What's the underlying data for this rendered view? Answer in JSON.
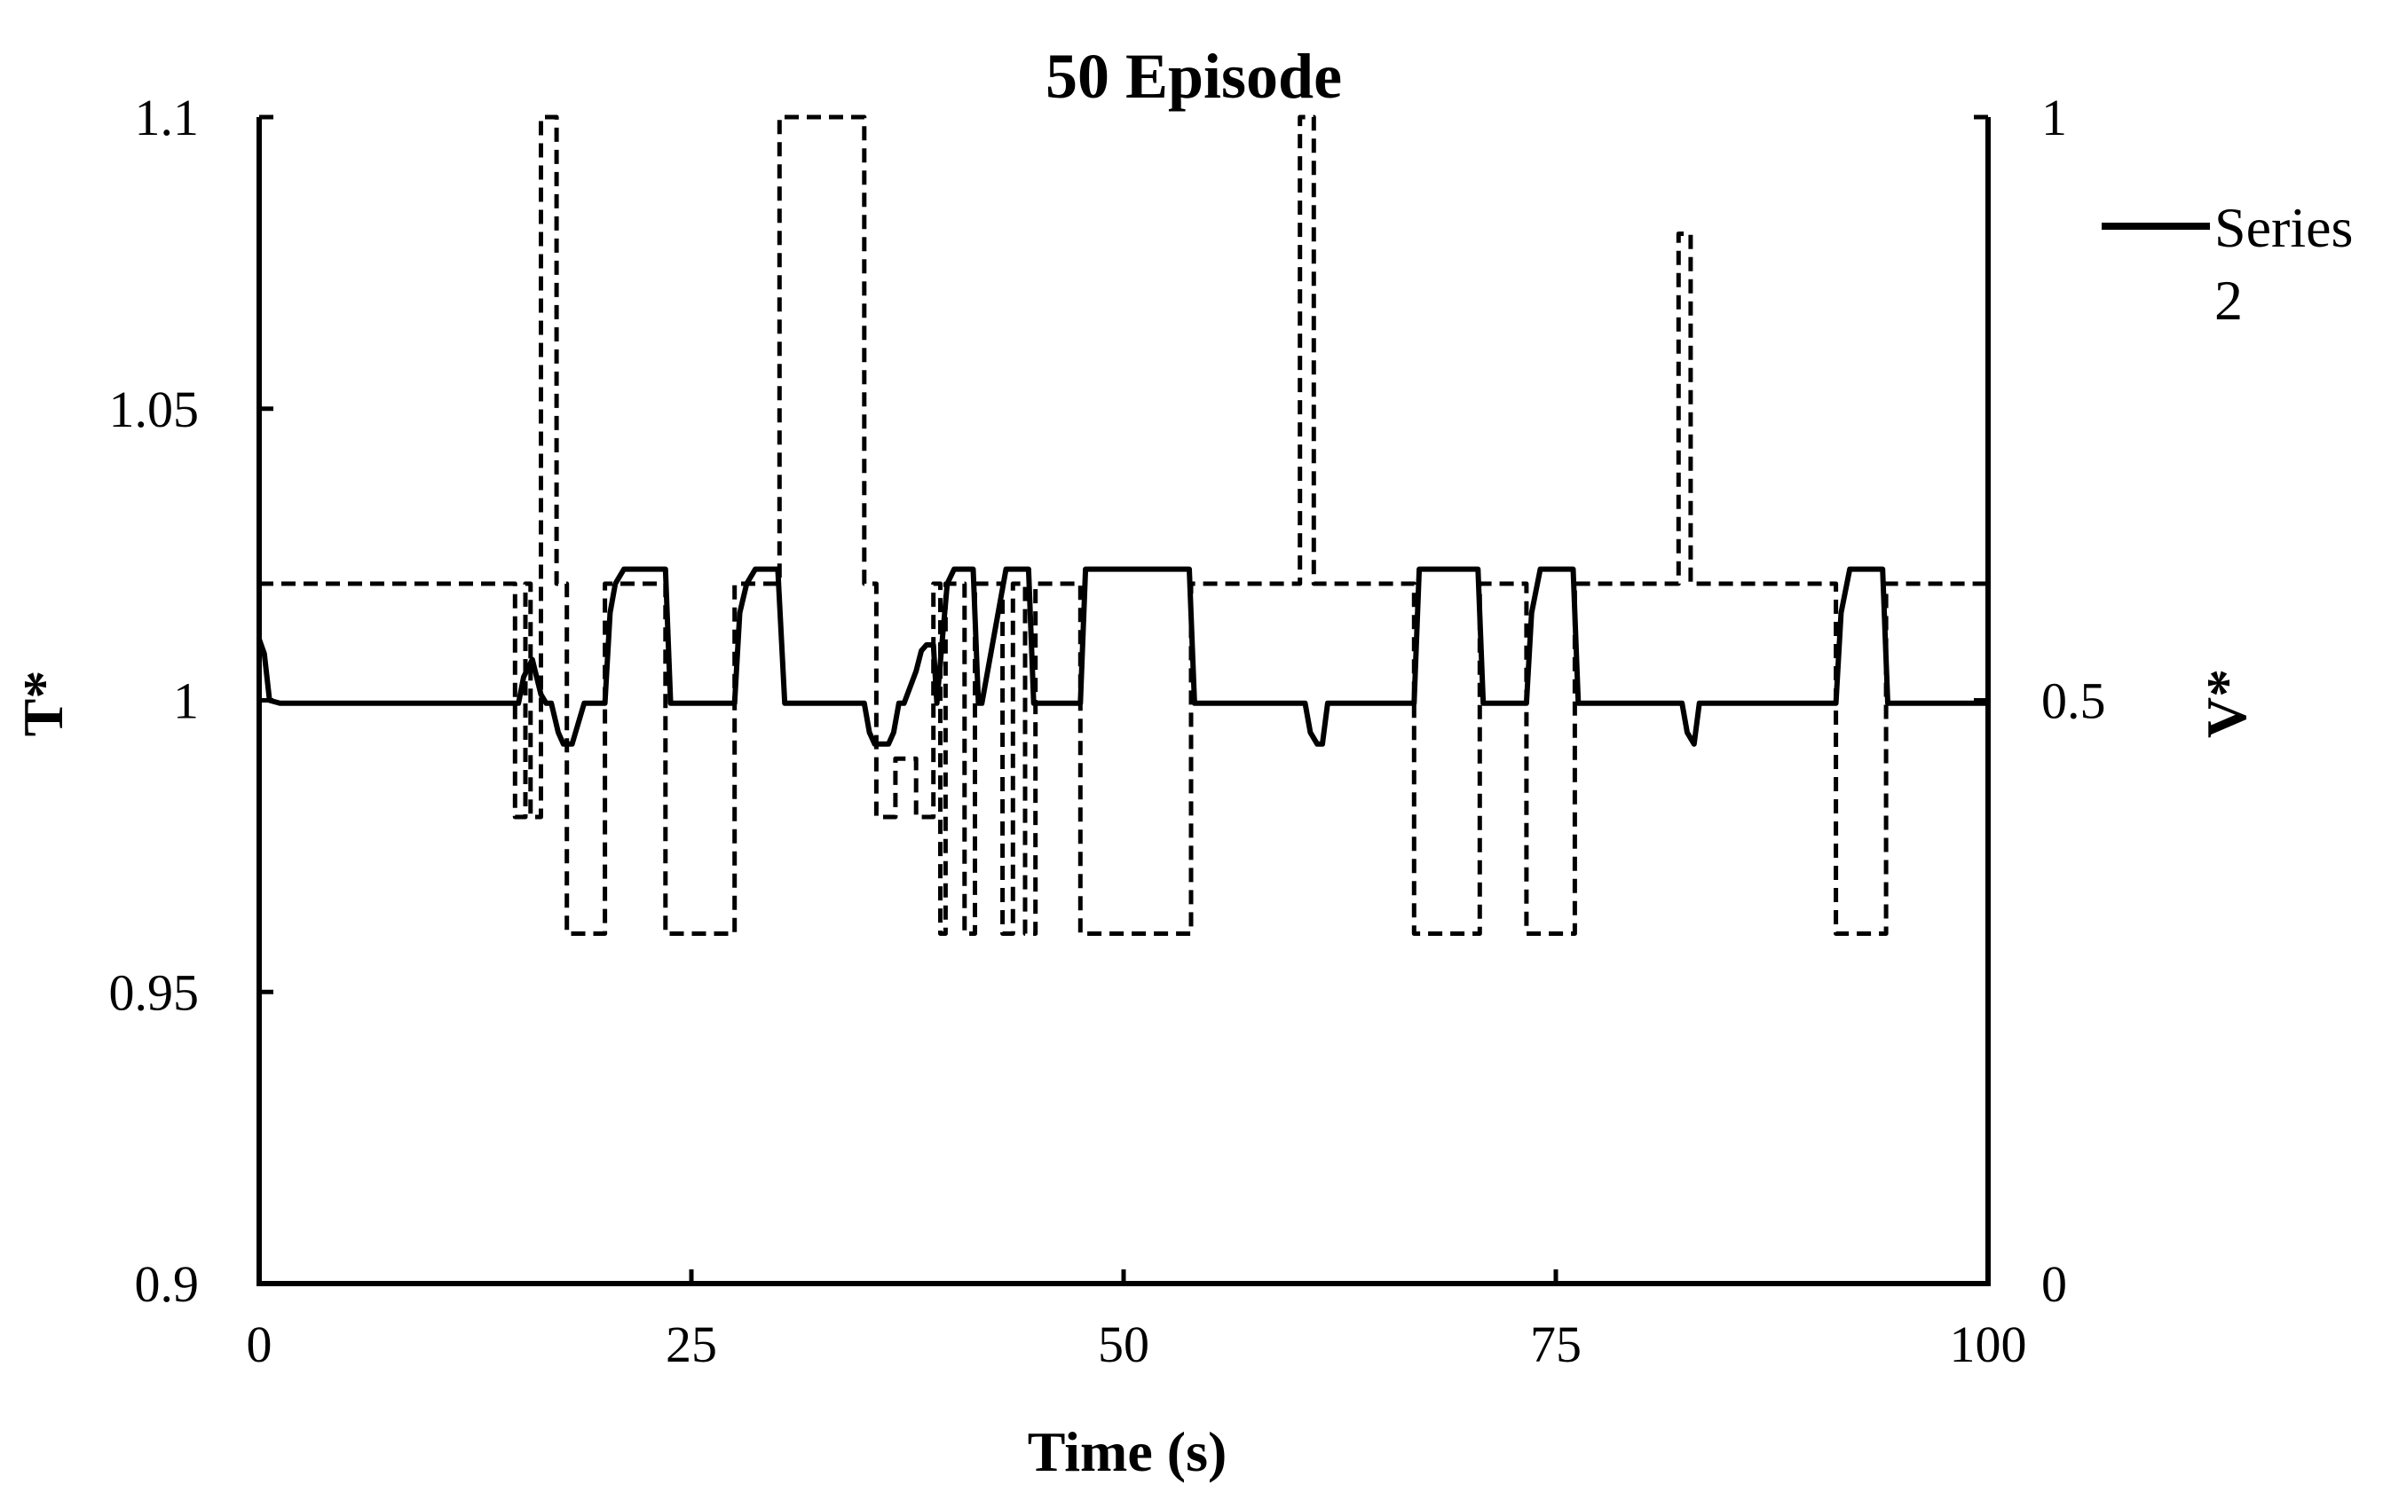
{
  "chart_data": {
    "type": "line",
    "title": "50 Episode",
    "xlabel": "Time (s)",
    "ylabel_left": "T*",
    "ylabel_right": "V*",
    "xlim": [
      0,
      100
    ],
    "ylim_left": [
      0.9,
      1.1
    ],
    "ylim_right": [
      0,
      1
    ],
    "xticks": [
      "0",
      "25",
      "50",
      "75",
      "100"
    ],
    "yticks_left": [
      "0.9",
      "0.95",
      "1",
      "1.05",
      "1.1"
    ],
    "yticks_right": [
      "0",
      "0.5",
      "1"
    ],
    "grid": false,
    "legend_position": "top-right",
    "series": [
      {
        "name": "Series 2",
        "axis": "left",
        "style": "solid",
        "color": "#000000",
        "x": [
          0,
          0.3,
          0.6,
          1.2,
          15.0,
          15.3,
          15.8,
          16.3,
          16.6,
          16.9,
          17.3,
          17.6,
          18.1,
          18.8,
          19.3,
          20.0,
          20.3,
          20.6,
          21.1,
          23.5,
          23.8,
          27.5,
          27.8,
          28.2,
          28.7,
          30.0,
          30.4,
          35.0,
          35.3,
          35.6,
          36.4,
          36.7,
          37.0,
          37.3,
          38.0,
          38.3,
          38.6,
          39.0,
          39.2,
          39.5,
          39.8,
          40.2,
          40.6,
          41.3,
          41.6,
          41.8,
          43.2,
          43.5,
          43.9,
          44.5,
          44.8,
          47.5,
          47.8,
          53.8,
          54.1,
          60.5,
          60.8,
          61.2,
          61.5,
          61.8,
          66.8,
          67.1,
          70.5,
          70.8,
          73.3,
          73.6,
          74.1,
          76.0,
          76.3,
          82.3,
          82.6,
          83.0,
          83.3,
          91.2,
          91.5,
          92.0,
          93.9,
          94.2,
          100
        ],
        "y": [
          1.0105,
          1.008,
          1.0,
          0.9995,
          0.9995,
          1.004,
          1.007,
          1.001,
          0.9995,
          0.9995,
          0.9945,
          0.9925,
          0.9925,
          0.9995,
          0.9995,
          0.9995,
          1.015,
          1.02,
          1.0225,
          1.0225,
          0.9995,
          0.9995,
          1.015,
          1.02,
          1.0225,
          1.0225,
          0.9995,
          0.9995,
          0.9945,
          0.9925,
          0.9925,
          0.9945,
          0.9995,
          0.9995,
          1.005,
          1.0085,
          1.0095,
          1.0095,
          0.9995,
          1.01,
          1.02,
          1.0225,
          1.0225,
          1.0225,
          0.9995,
          0.9995,
          1.0225,
          1.0225,
          1.0225,
          1.0225,
          0.9995,
          0.9995,
          1.0225,
          1.0225,
          0.9995,
          0.9995,
          0.9945,
          0.9925,
          0.9925,
          0.9995,
          0.9995,
          1.0225,
          1.0225,
          0.9995,
          0.9995,
          1.015,
          1.0225,
          1.0225,
          0.9995,
          0.9995,
          0.9945,
          0.9925,
          0.9995,
          0.9995,
          1.015,
          1.0225,
          1.0225,
          0.9995,
          0.9995
        ]
      },
      {
        "axis": "right",
        "style": "dashed",
        "color": "#000000",
        "x": [
          0,
          14.8,
          14.8,
          15.4,
          15.4,
          15.7,
          15.7,
          16.3,
          16.3,
          17.2,
          17.2,
          17.8,
          17.8,
          20.0,
          20.0,
          23.5,
          23.5,
          27.5,
          27.5,
          30.1,
          30.1,
          35.0,
          35.0,
          35.7,
          35.7,
          36.8,
          36.8,
          38.0,
          38.0,
          39.0,
          39.0,
          39.4,
          39.4,
          39.7,
          39.7,
          40.8,
          40.8,
          41.4,
          41.4,
          43.0,
          43.0,
          43.6,
          43.6,
          44.3,
          44.3,
          44.9,
          44.9,
          47.5,
          47.5,
          53.9,
          53.9,
          60.2,
          60.2,
          61.0,
          61.0,
          66.8,
          66.8,
          70.6,
          70.6,
          73.3,
          73.3,
          76.1,
          76.1,
          82.1,
          82.1,
          82.8,
          82.8,
          91.2,
          91.2,
          94.1,
          94.1,
          100
        ],
        "y": [
          0.6,
          0.6,
          0.4,
          0.4,
          0.6,
          0.6,
          0.4,
          0.4,
          1.0,
          1.0,
          0.6,
          0.6,
          0.3,
          0.3,
          0.6,
          0.6,
          0.3,
          0.3,
          0.6,
          0.6,
          1.0,
          1.0,
          0.6,
          0.6,
          0.4,
          0.4,
          0.45,
          0.45,
          0.4,
          0.4,
          0.6,
          0.6,
          0.3,
          0.3,
          0.6,
          0.6,
          0.3,
          0.3,
          0.6,
          0.6,
          0.3,
          0.3,
          0.6,
          0.6,
          0.3,
          0.3,
          0.6,
          0.6,
          0.3,
          0.3,
          0.6,
          0.6,
          1.0,
          1.0,
          0.6,
          0.6,
          0.3,
          0.3,
          0.6,
          0.6,
          0.3,
          0.3,
          0.6,
          0.6,
          0.9,
          0.9,
          0.6,
          0.6,
          0.3,
          0.3,
          0.6,
          0.6
        ]
      }
    ]
  }
}
